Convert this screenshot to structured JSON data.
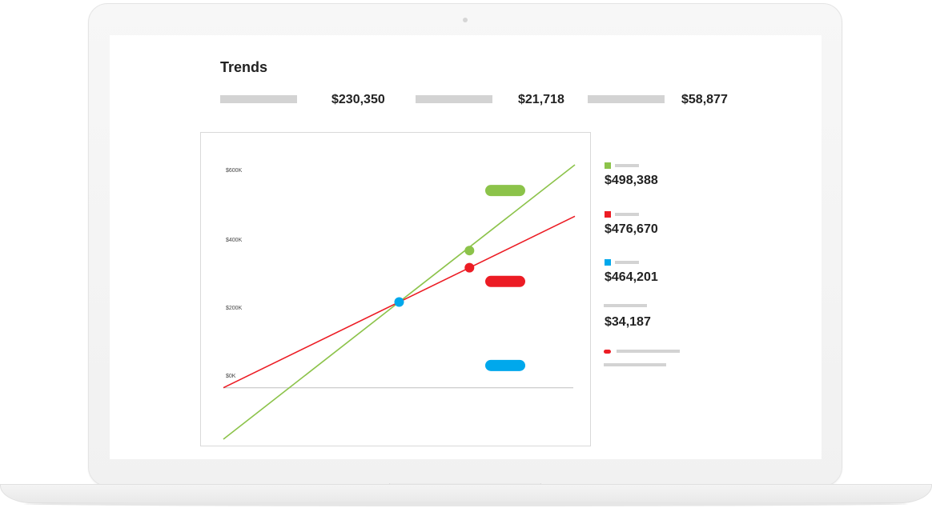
{
  "page": {
    "title": "Trends"
  },
  "kpis": [
    {
      "value": "$230,350"
    },
    {
      "value": "$21,718"
    },
    {
      "value": "$58,877"
    }
  ],
  "legend": [
    {
      "color": "#8cc34a",
      "value": "$498,388",
      "icon": "green-square-icon"
    },
    {
      "color": "#ec1c24",
      "value": "$476,670",
      "icon": "red-square-icon"
    },
    {
      "color": "#00a8ec",
      "value": "$464,201",
      "icon": "blue-square-icon"
    },
    {
      "color": null,
      "value": "$34,187"
    },
    {
      "color": "#ec1c24",
      "icon": "red-dot-icon"
    }
  ],
  "chart_data": {
    "type": "line",
    "yticks": [
      "$600K",
      "$400K",
      "$200K",
      "$0K"
    ],
    "ylim": [
      -150,
      650
    ],
    "xlim": [
      0,
      10
    ],
    "series": [
      {
        "color": "#8cc34a",
        "points": [
          [
            0,
            -150
          ],
          [
            10,
            650
          ]
        ],
        "marker": [
          7,
          400
        ]
      },
      {
        "color": "#ec1c24",
        "points": [
          [
            0,
            0
          ],
          [
            10,
            500
          ]
        ],
        "marker": [
          7,
          350
        ]
      },
      {
        "color": "#00a8ec",
        "marker": [
          5,
          250
        ]
      }
    ],
    "tags": [
      {
        "color": "#8cc34a",
        "y": 575
      },
      {
        "color": "#ec1c24",
        "y": 310
      },
      {
        "color": "#00a8ec",
        "y": 65
      }
    ],
    "grid": false,
    "baseline": 0
  }
}
